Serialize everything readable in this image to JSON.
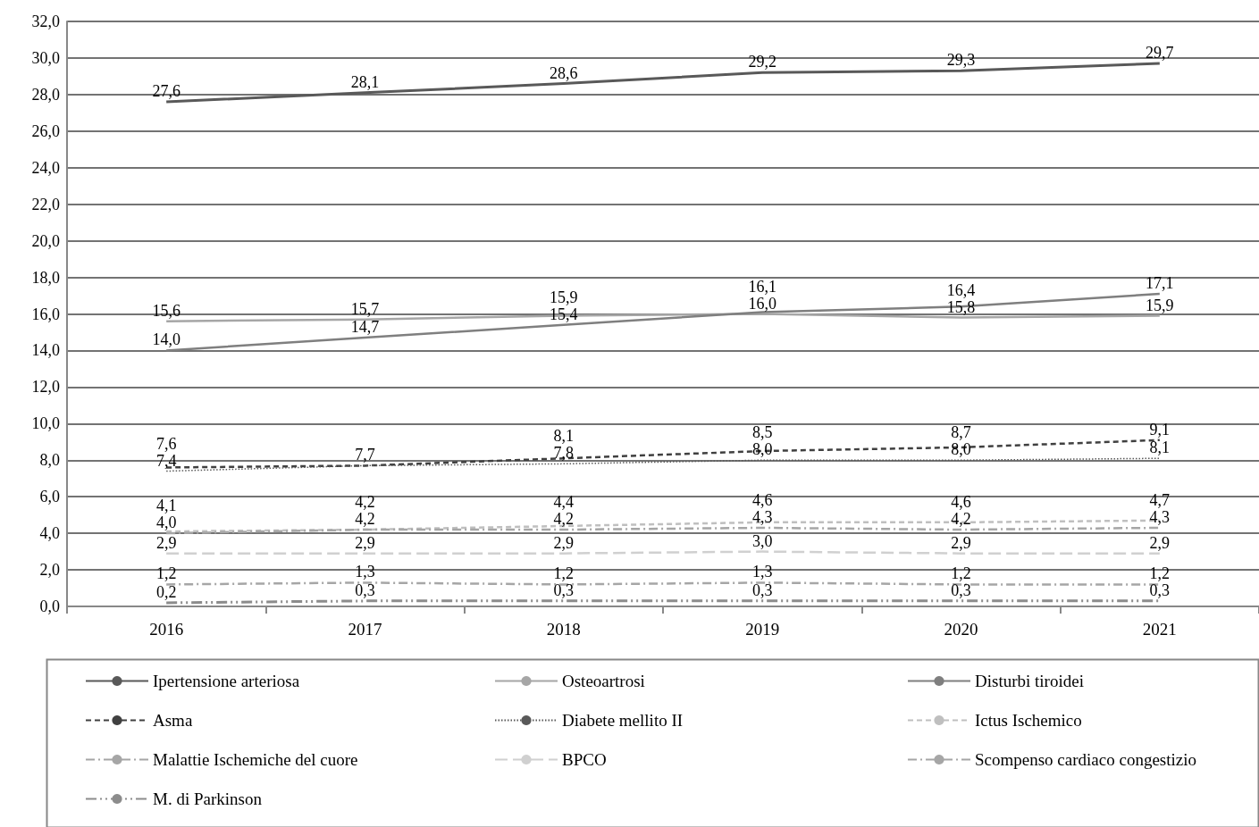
{
  "chart_data": {
    "type": "line",
    "categories": [
      "2016",
      "2017",
      "2018",
      "2019",
      "2020",
      "2021"
    ],
    "ylim": [
      0,
      32
    ],
    "yticks": [
      {
        "value": 0,
        "label": "0,0"
      },
      {
        "value": 2,
        "label": "2,0"
      },
      {
        "value": 4,
        "label": "4,0"
      },
      {
        "value": 6,
        "label": "6,0"
      },
      {
        "value": 8,
        "label": "8,0"
      },
      {
        "value": 10,
        "label": "10,0"
      },
      {
        "value": 12,
        "label": "12,0"
      },
      {
        "value": 14,
        "label": "14,0"
      },
      {
        "value": 16,
        "label": "16,0"
      },
      {
        "value": 18,
        "label": "18,0"
      },
      {
        "value": 20,
        "label": "20,0"
      },
      {
        "value": 22,
        "label": "22,0"
      },
      {
        "value": 24,
        "label": "24,0"
      },
      {
        "value": 26,
        "label": "26,0"
      },
      {
        "value": 28,
        "label": "28,0"
      },
      {
        "value": 30,
        "label": "30,0"
      },
      {
        "value": 32,
        "label": "32,0"
      }
    ],
    "grid": "y",
    "legend": "bottom",
    "marker": "none",
    "series": [
      {
        "name": "Ipertensione arteriosa",
        "color": "#595959",
        "line_style": "solid",
        "values": [
          27.6,
          28.1,
          28.6,
          29.2,
          29.3,
          29.7
        ],
        "value_labels": [
          "27,6",
          "28,1",
          "28,6",
          "29,2",
          "29,3",
          "29,7"
        ]
      },
      {
        "name": "Osteoartrosi",
        "color": "#a6a6a6",
        "line_style": "solid",
        "values": [
          15.6,
          15.7,
          15.9,
          16.0,
          15.8,
          15.9
        ],
        "value_labels": [
          "15,6",
          "15,7",
          "15,9",
          "16,0",
          "15,8",
          "15,9"
        ]
      },
      {
        "name": "Disturbi tiroidei",
        "color": "#7f7f7f",
        "line_style": "solid",
        "values": [
          14.0,
          14.7,
          15.4,
          16.1,
          16.4,
          17.1
        ],
        "value_labels": [
          "14,0",
          "14,7",
          "15,4",
          "16,1",
          "16,4",
          "17,1"
        ]
      },
      {
        "name": "Asma",
        "color": "#404040",
        "line_style": "dashed",
        "values": [
          7.6,
          7.7,
          8.1,
          8.5,
          8.7,
          9.1
        ],
        "value_labels": [
          "7,6",
          "7,7",
          "8,1",
          "8,5",
          "8,7",
          "9,1"
        ]
      },
      {
        "name": "Diabete mellito II",
        "color": "#595959",
        "line_style": "dotted",
        "values": [
          7.4,
          7.7,
          7.8,
          8.0,
          8.0,
          8.1
        ],
        "value_labels": [
          "7,4",
          null,
          "7,8",
          "8,0",
          "8,0",
          "8,1"
        ]
      },
      {
        "name": "Ictus Ischemico",
        "color": "#bfbfbf",
        "line_style": "dashed",
        "values": [
          4.1,
          4.2,
          4.4,
          4.6,
          4.6,
          4.7
        ],
        "value_labels": [
          "4,1",
          "4,2",
          "4,4",
          "4,6",
          "4,6",
          "4,7"
        ]
      },
      {
        "name": "Malattie Ischemiche del cuore",
        "color": "#a6a6a6",
        "line_style": "dashdot",
        "values": [
          4.0,
          4.2,
          4.2,
          4.3,
          4.2,
          4.3
        ],
        "value_labels": [
          "4,0",
          "4,2",
          "4,2",
          "4,3",
          "4,2",
          "4,3"
        ]
      },
      {
        "name": "BPCO",
        "color": "#d0d0d0",
        "line_style": "longdash",
        "values": [
          2.9,
          2.9,
          2.9,
          3.0,
          2.9,
          2.9
        ],
        "value_labels": [
          "2,9",
          "2,9",
          "2,9",
          "3,0",
          "2,9",
          "2,9"
        ]
      },
      {
        "name": "Scompenso cardiaco congestizio",
        "color": "#a6a6a6",
        "line_style": "dashdot",
        "values": [
          1.2,
          1.3,
          1.2,
          1.3,
          1.2,
          1.2
        ],
        "value_labels": [
          "1,2",
          "1,3",
          "1,2",
          "1,3",
          "1,2",
          "1,2"
        ]
      },
      {
        "name": "M. di Parkinson",
        "color": "#8c8c8c",
        "line_style": "dashdotdot",
        "values": [
          0.2,
          0.3,
          0.3,
          0.3,
          0.3,
          0.3
        ],
        "value_labels": [
          "0,2",
          "0,3",
          "0,3",
          "0,3",
          "0,3",
          "0,3"
        ]
      }
    ]
  }
}
